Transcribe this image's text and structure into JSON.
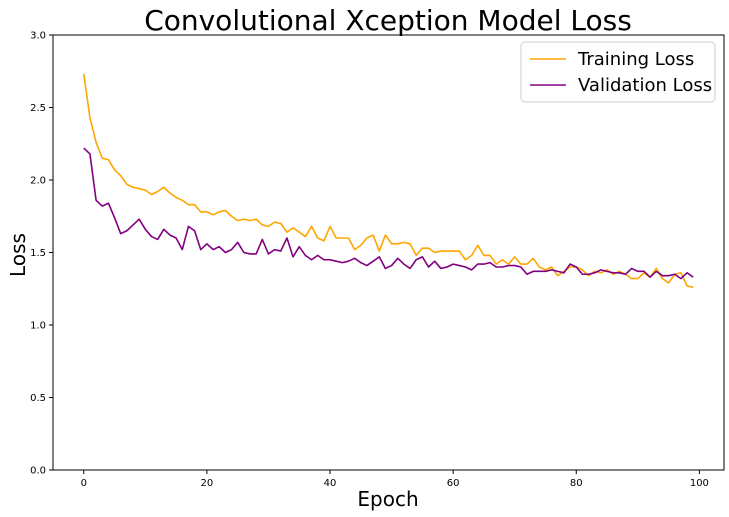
{
  "chart_data": {
    "type": "line",
    "title": "Convolutional Xception Model Loss",
    "xlabel": "Epoch",
    "ylabel": "Loss",
    "xlim": [
      -5,
      104
    ],
    "ylim": [
      0.0,
      3.0
    ],
    "x_ticks": [
      "0",
      "20",
      "40",
      "60",
      "80",
      "100"
    ],
    "y_ticks": [
      "0.0",
      "0.5",
      "1.0",
      "1.5",
      "2.0",
      "2.5",
      "3.0"
    ],
    "grid": false,
    "legend_position": "top-right",
    "x": [
      0,
      1,
      2,
      3,
      4,
      5,
      6,
      7,
      8,
      9,
      10,
      11,
      12,
      13,
      14,
      15,
      16,
      17,
      18,
      19,
      20,
      21,
      22,
      23,
      24,
      25,
      26,
      27,
      28,
      29,
      30,
      31,
      32,
      33,
      34,
      35,
      36,
      37,
      38,
      39,
      40,
      41,
      42,
      43,
      44,
      45,
      46,
      47,
      48,
      49,
      50,
      51,
      52,
      53,
      54,
      55,
      56,
      57,
      58,
      59,
      60,
      61,
      62,
      63,
      64,
      65,
      66,
      67,
      68,
      69,
      70,
      71,
      72,
      73,
      74,
      75,
      76,
      77,
      78,
      79,
      80,
      81,
      82,
      83,
      84,
      85,
      86,
      87,
      88,
      89,
      90,
      91,
      92,
      93,
      94,
      95,
      96,
      97,
      98,
      99
    ],
    "series": [
      {
        "name": "Training Loss",
        "color": "#FFA500",
        "values": [
          2.73,
          2.43,
          2.26,
          2.15,
          2.14,
          2.07,
          2.03,
          1.97,
          1.95,
          1.94,
          1.93,
          1.9,
          1.92,
          1.95,
          1.91,
          1.88,
          1.86,
          1.83,
          1.83,
          1.78,
          1.78,
          1.76,
          1.78,
          1.79,
          1.75,
          1.72,
          1.73,
          1.72,
          1.73,
          1.69,
          1.68,
          1.71,
          1.7,
          1.64,
          1.67,
          1.64,
          1.61,
          1.68,
          1.6,
          1.58,
          1.68,
          1.6,
          1.6,
          1.6,
          1.52,
          1.55,
          1.6,
          1.62,
          1.51,
          1.62,
          1.56,
          1.56,
          1.57,
          1.56,
          1.48,
          1.53,
          1.53,
          1.5,
          1.51,
          1.51,
          1.51,
          1.51,
          1.45,
          1.48,
          1.55,
          1.48,
          1.48,
          1.42,
          1.45,
          1.42,
          1.47,
          1.42,
          1.42,
          1.46,
          1.4,
          1.38,
          1.4,
          1.34,
          1.37,
          1.4,
          1.4,
          1.38,
          1.34,
          1.37,
          1.36,
          1.38,
          1.35,
          1.37,
          1.35,
          1.32,
          1.32,
          1.36,
          1.33,
          1.39,
          1.32,
          1.29,
          1.35,
          1.36,
          1.27,
          1.26
        ]
      },
      {
        "name": "Validation Loss",
        "color": "#800080",
        "values": [
          2.22,
          2.18,
          1.86,
          1.82,
          1.84,
          1.74,
          1.63,
          1.65,
          1.69,
          1.73,
          1.66,
          1.61,
          1.59,
          1.66,
          1.62,
          1.6,
          1.52,
          1.68,
          1.65,
          1.52,
          1.56,
          1.52,
          1.54,
          1.5,
          1.52,
          1.57,
          1.5,
          1.49,
          1.49,
          1.59,
          1.49,
          1.52,
          1.51,
          1.6,
          1.47,
          1.54,
          1.48,
          1.45,
          1.48,
          1.45,
          1.45,
          1.44,
          1.43,
          1.44,
          1.46,
          1.43,
          1.41,
          1.44,
          1.47,
          1.39,
          1.41,
          1.46,
          1.42,
          1.39,
          1.45,
          1.47,
          1.4,
          1.44,
          1.39,
          1.4,
          1.42,
          1.41,
          1.4,
          1.38,
          1.42,
          1.42,
          1.43,
          1.4,
          1.4,
          1.41,
          1.41,
          1.4,
          1.35,
          1.37,
          1.37,
          1.37,
          1.38,
          1.37,
          1.36,
          1.42,
          1.4,
          1.35,
          1.35,
          1.36,
          1.38,
          1.37,
          1.36,
          1.36,
          1.35,
          1.39,
          1.37,
          1.37,
          1.33,
          1.37,
          1.34,
          1.34,
          1.35,
          1.32,
          1.36,
          1.33
        ]
      }
    ]
  }
}
